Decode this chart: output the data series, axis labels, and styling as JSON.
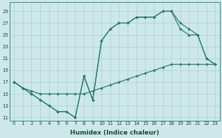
{
  "xlabel": "Humidex (Indice chaleur)",
  "bg_color": "#cde8e8",
  "line_color": "#2a7a6a",
  "grid_color": "#aacfcf",
  "xlim": [
    -0.5,
    23.5
  ],
  "ylim": [
    10.5,
    30.5
  ],
  "xticks": [
    0,
    1,
    2,
    3,
    4,
    5,
    6,
    7,
    8,
    9,
    10,
    11,
    12,
    13,
    14,
    15,
    16,
    17,
    18,
    19,
    20,
    21,
    22,
    23
  ],
  "yticks": [
    11,
    13,
    15,
    17,
    19,
    21,
    23,
    25,
    27,
    29
  ],
  "line1_x": [
    0,
    1,
    2,
    3,
    4,
    5,
    6,
    7,
    8,
    9,
    10,
    11,
    12,
    13,
    14,
    15,
    16,
    17,
    18,
    19,
    20,
    21,
    22,
    23
  ],
  "line1_y": [
    17,
    16,
    15,
    14,
    13,
    12,
    12,
    11,
    18,
    14,
    24,
    26,
    27,
    27,
    28,
    28,
    28,
    29,
    29,
    27,
    26,
    25,
    21,
    20
  ],
  "line2_x": [
    0,
    1,
    2,
    3,
    4,
    5,
    6,
    7,
    8,
    9,
    10,
    11,
    12,
    13,
    14,
    15,
    16,
    17,
    18,
    19,
    20,
    21,
    22,
    23
  ],
  "line2_y": [
    17,
    16,
    15.5,
    15,
    15,
    15,
    15,
    15,
    15,
    15.5,
    16,
    16.5,
    17,
    17.5,
    18,
    18.5,
    19,
    19.5,
    20,
    20,
    20,
    20,
    20,
    20
  ],
  "line3_x": [
    0,
    1,
    2,
    3,
    4,
    5,
    6,
    7,
    8,
    9,
    10,
    11,
    12,
    13,
    14,
    15,
    16,
    17,
    18,
    19,
    20,
    21,
    22,
    23
  ],
  "line3_y": [
    17,
    16,
    15,
    14,
    13,
    12,
    12,
    11,
    18,
    14,
    24,
    26,
    27,
    27,
    28,
    28,
    28,
    29,
    29,
    26,
    25,
    25,
    21,
    20
  ]
}
